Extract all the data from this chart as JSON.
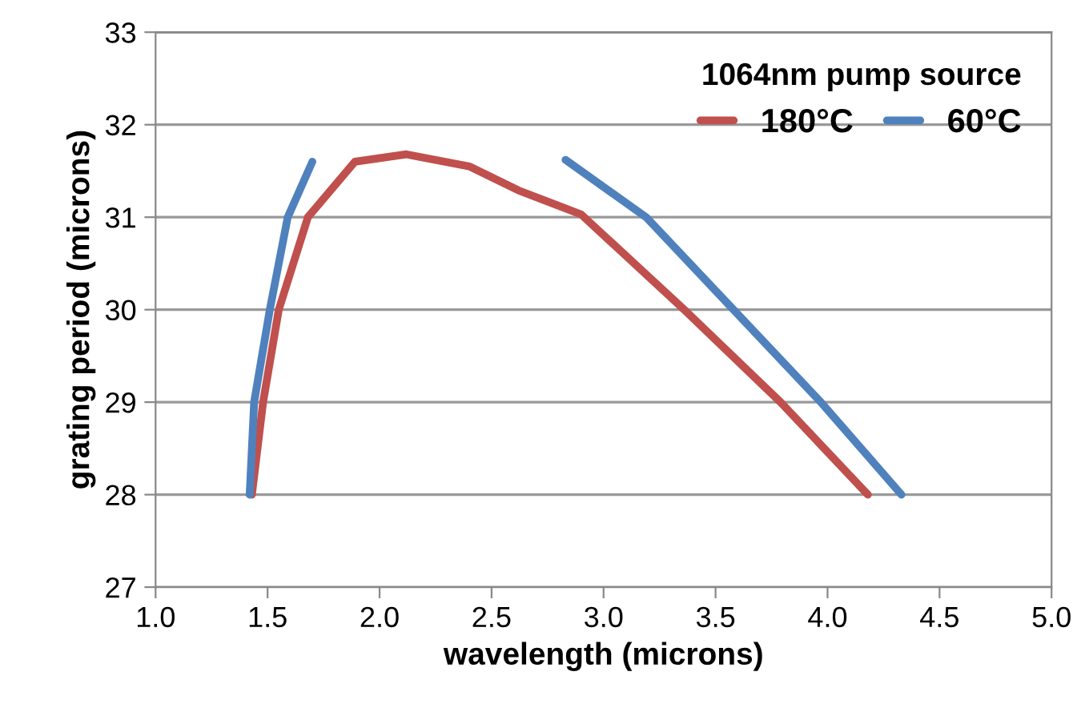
{
  "chart_data": {
    "type": "line",
    "xlabel": "wavelength (microns)",
    "ylabel": "grating period (microns)",
    "legend_title": "1064nm pump source",
    "legend": "top right",
    "grid": "y",
    "marker": "none",
    "line_style": "solid",
    "xlim": [
      1.0,
      5.0
    ],
    "xticks": [
      {
        "value": 1.0,
        "label": "1.0"
      },
      {
        "value": 1.5,
        "label": "1.5"
      },
      {
        "value": 2.0,
        "label": "2.0"
      },
      {
        "value": 2.5,
        "label": "2.5"
      },
      {
        "value": 3.0,
        "label": "3.0"
      },
      {
        "value": 3.5,
        "label": "3.5"
      },
      {
        "value": 4.0,
        "label": "4.0"
      },
      {
        "value": 4.5,
        "label": "4.5"
      },
      {
        "value": 5.0,
        "label": "5.0"
      }
    ],
    "ylim": [
      27,
      33
    ],
    "yticks": [
      27,
      28,
      29,
      30,
      31,
      32,
      33
    ],
    "series": [
      {
        "name": "180°C",
        "color": "#c0504d",
        "x": [
          1.43,
          1.48,
          1.55,
          1.68,
          1.89,
          2.12,
          2.4,
          2.62,
          2.9,
          3.36,
          3.79,
          4.18
        ],
        "values": [
          28,
          29,
          30,
          31,
          31.6,
          31.68,
          31.55,
          31.29,
          31.03,
          30,
          29,
          28
        ]
      },
      {
        "name": "60°C",
        "color": "#4f81bd",
        "x": [
          1.42,
          1.44,
          1.51,
          1.59,
          1.7,
          null,
          2.83,
          3.19,
          3.58,
          3.97,
          4.33
        ],
        "values": [
          28,
          29,
          30,
          31,
          31.6,
          null,
          31.62,
          31,
          30,
          29,
          28
        ]
      }
    ]
  }
}
